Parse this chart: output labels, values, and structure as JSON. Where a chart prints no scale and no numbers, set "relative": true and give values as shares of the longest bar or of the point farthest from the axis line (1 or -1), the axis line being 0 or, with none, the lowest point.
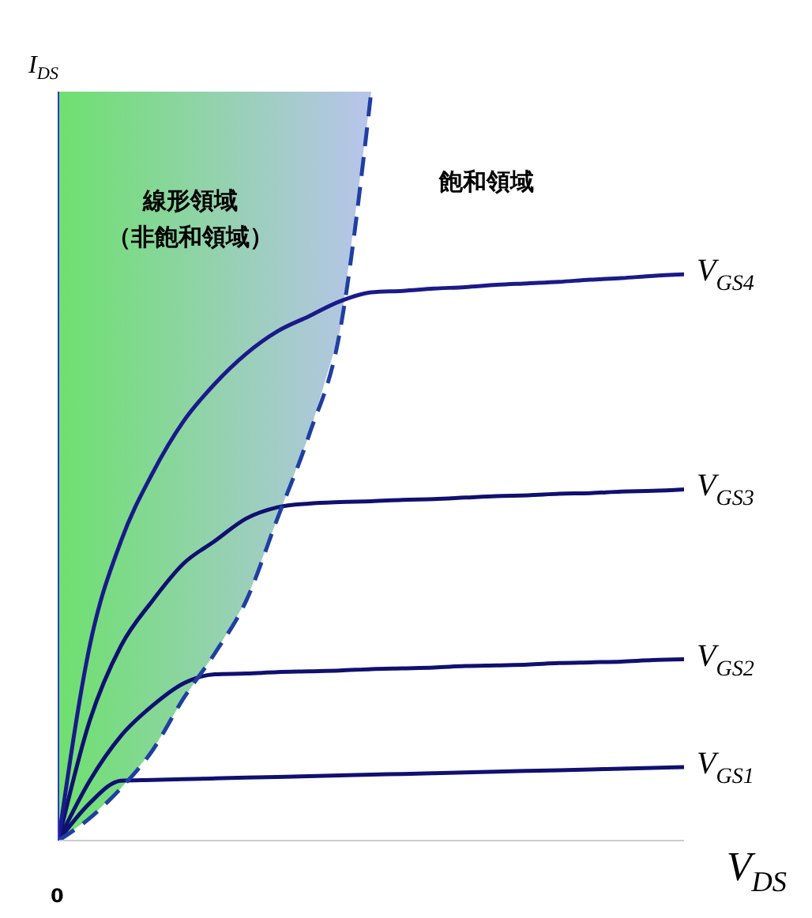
{
  "chart_data": {
    "type": "line",
    "relative": true,
    "xlabel": "V$_{DS}$",
    "ylabel": "I$_{DS}$",
    "categories": [
      null,
      null,
      null,
      null,
      null,
      null,
      null,
      null,
      null,
      null,
      null,
      null,
      null,
      null,
      null,
      null,
      null,
      null,
      null,
      null,
      null
    ],
    "series": [
      {
        "name": "V$_{GS1}$",
        "color": "#101070",
        "values": [
          0,
          0.05,
          0.08,
          0.081,
          0.082,
          0.083,
          0.084,
          0.085,
          0.086,
          0.087,
          0.088,
          0.089,
          0.09,
          0.091,
          0.092,
          0.093,
          0.094,
          0.095,
          0.096,
          0.097,
          0.098
        ]
      },
      {
        "name": "V$_{GS2}$",
        "color": "#101070",
        "values": [
          0,
          0.08,
          0.14,
          0.18,
          0.21,
          0.222,
          0.223,
          0.225,
          0.226,
          0.227,
          0.229,
          0.23,
          0.231,
          0.233,
          0.234,
          0.235,
          0.237,
          0.238,
          0.239,
          0.241,
          0.242
        ]
      },
      {
        "name": "V$_{GS3}$",
        "color": "#101070",
        "values": [
          0,
          0.16,
          0.26,
          0.32,
          0.37,
          0.4,
          0.43,
          0.445,
          0.45,
          0.452,
          0.453,
          0.455,
          0.456,
          0.458,
          0.46,
          0.461,
          0.463,
          0.464,
          0.466,
          0.467,
          0.469
        ]
      },
      {
        "name": "V$_{GS4}$",
        "color": "#1a1a8a",
        "values": [
          0,
          0.26,
          0.4,
          0.49,
          0.56,
          0.61,
          0.65,
          0.68,
          0.7,
          0.72,
          0.732,
          0.734,
          0.737,
          0.739,
          0.742,
          0.744,
          0.746,
          0.749,
          0.751,
          0.754,
          0.756
        ]
      },
      {
        "type": "line",
        "color": "#1f3fa0",
        "line_style": "dashed",
        "values": [
          0,
          0.03,
          0.07,
          0.12,
          0.19,
          0.25,
          0.32,
          0.43,
          0.54,
          0.68,
          1,
          null,
          null,
          null,
          null,
          null,
          null,
          null,
          null,
          null,
          null
        ]
      }
    ],
    "annotations": [
      "線形領域（非飽和領域）",
      "飽和領域",
      "0"
    ],
    "legend": false,
    "grid": false,
    "marker": "none"
  }
}
